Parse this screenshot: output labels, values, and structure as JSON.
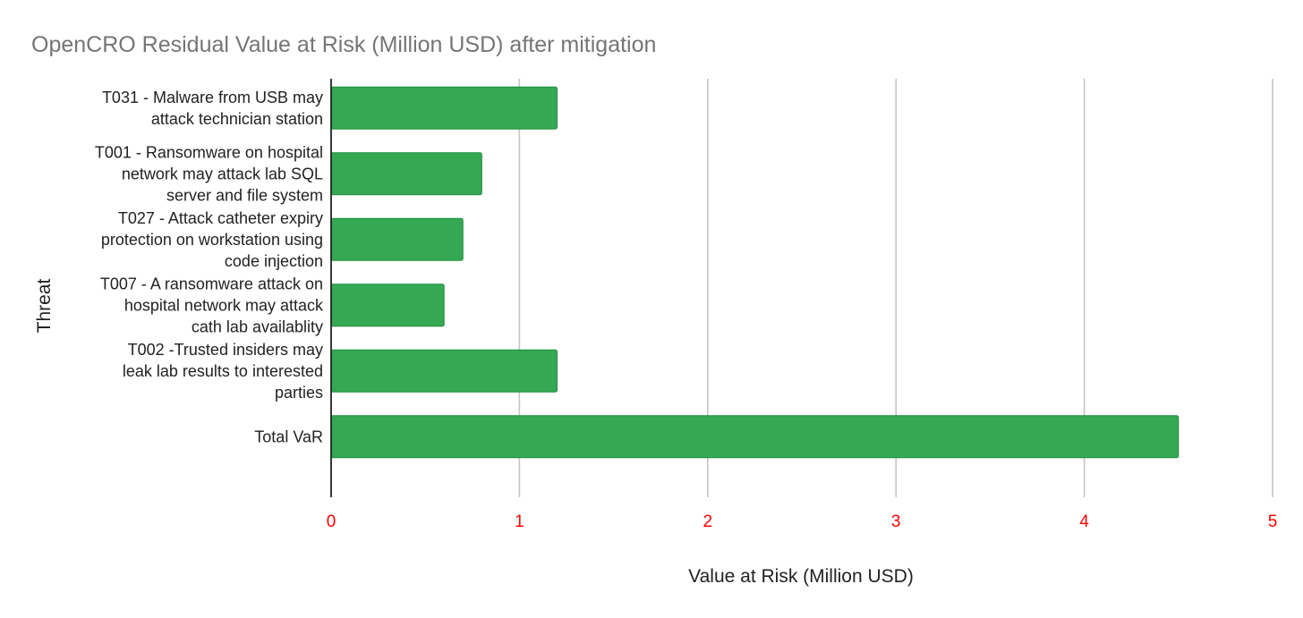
{
  "chart_data": {
    "type": "bar",
    "orientation": "horizontal",
    "title": "OpenCRO  Residual Value at Risk (Million USD) after mitigation",
    "xlabel": "Value at Risk (Million USD)",
    "ylabel": "Threat",
    "categories": [
      [
        "T031 - Malware from USB may",
        "attack technician station"
      ],
      [
        "T001 - Ransomware on hospital",
        "network may attack lab SQL",
        "server and file system"
      ],
      [
        "T027 - Attack catheter expiry",
        "protection on workstation using",
        "code injection"
      ],
      [
        "T007 - A ransomware attack on",
        "hospital network may attack",
        "cath lab availablity"
      ],
      [
        "T002 -Trusted insiders may",
        "leak lab results to interested",
        "parties"
      ],
      [
        "Total VaR"
      ]
    ],
    "series": [
      {
        "values": [
          1.2,
          0.8,
          0.7,
          0.6,
          1.2,
          4.5
        ]
      }
    ],
    "xlim": [
      0,
      5
    ],
    "xticks": [
      "0",
      "1",
      "2",
      "3",
      "4",
      "5"
    ],
    "grid": true,
    "legend": "none",
    "colors": {
      "bar": "#34a853",
      "bar_border": "#1e8e3e",
      "tick_labels": "#ff0000",
      "title": "#757575"
    }
  }
}
